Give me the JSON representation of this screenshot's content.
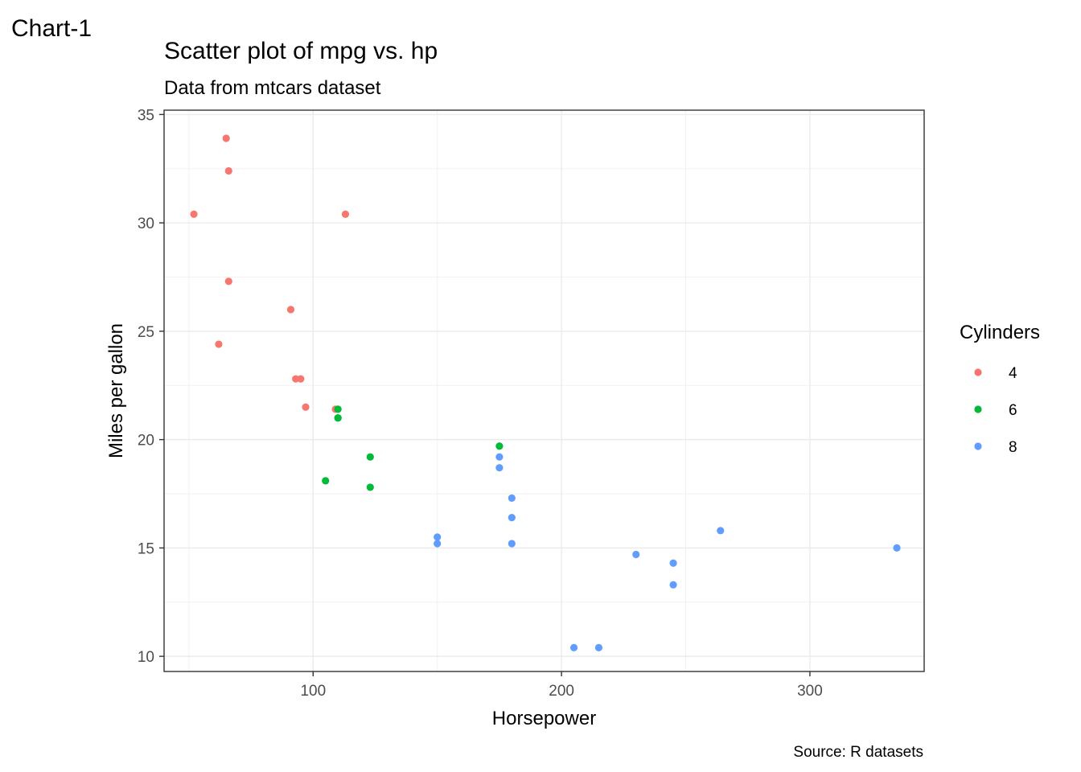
{
  "chart_data": {
    "type": "scatter",
    "tag": "Chart-1",
    "title": "Scatter plot of mpg vs. hp",
    "subtitle": "Data from mtcars dataset",
    "caption": "Source: R datasets",
    "xlabel": "Horsepower",
    "ylabel": "Miles per gallon",
    "xlim": [
      40,
      346
    ],
    "ylim": [
      9.3,
      35.2
    ],
    "x_ticks": [
      100,
      200,
      300
    ],
    "y_ticks": [
      10,
      15,
      20,
      25,
      30,
      35
    ],
    "grid": true,
    "legend": {
      "title": "Cylinders",
      "placement": "right"
    },
    "series": [
      {
        "name": "4",
        "color": "#F8766D",
        "points": [
          {
            "x": 93,
            "y": 22.8
          },
          {
            "x": 62,
            "y": 24.4
          },
          {
            "x": 95,
            "y": 22.8
          },
          {
            "x": 66,
            "y": 32.4
          },
          {
            "x": 52,
            "y": 30.4
          },
          {
            "x": 65,
            "y": 33.9
          },
          {
            "x": 97,
            "y": 21.5
          },
          {
            "x": 66,
            "y": 27.3
          },
          {
            "x": 91,
            "y": 26.0
          },
          {
            "x": 113,
            "y": 30.4
          },
          {
            "x": 109,
            "y": 21.4
          }
        ]
      },
      {
        "name": "6",
        "color": "#00BA38",
        "points": [
          {
            "x": 110,
            "y": 21.0
          },
          {
            "x": 110,
            "y": 21.0
          },
          {
            "x": 110,
            "y": 21.4
          },
          {
            "x": 105,
            "y": 18.1
          },
          {
            "x": 123,
            "y": 19.2
          },
          {
            "x": 123,
            "y": 17.8
          },
          {
            "x": 175,
            "y": 19.7
          }
        ]
      },
      {
        "name": "8",
        "color": "#619CFF",
        "points": [
          {
            "x": 175,
            "y": 18.7
          },
          {
            "x": 245,
            "y": 14.3
          },
          {
            "x": 180,
            "y": 16.4
          },
          {
            "x": 180,
            "y": 17.3
          },
          {
            "x": 180,
            "y": 15.2
          },
          {
            "x": 205,
            "y": 10.4
          },
          {
            "x": 215,
            "y": 10.4
          },
          {
            "x": 230,
            "y": 14.7
          },
          {
            "x": 150,
            "y": 15.5
          },
          {
            "x": 150,
            "y": 15.2
          },
          {
            "x": 245,
            "y": 13.3
          },
          {
            "x": 175,
            "y": 19.2
          },
          {
            "x": 264,
            "y": 15.8
          },
          {
            "x": 335,
            "y": 15.0
          }
        ]
      }
    ]
  }
}
